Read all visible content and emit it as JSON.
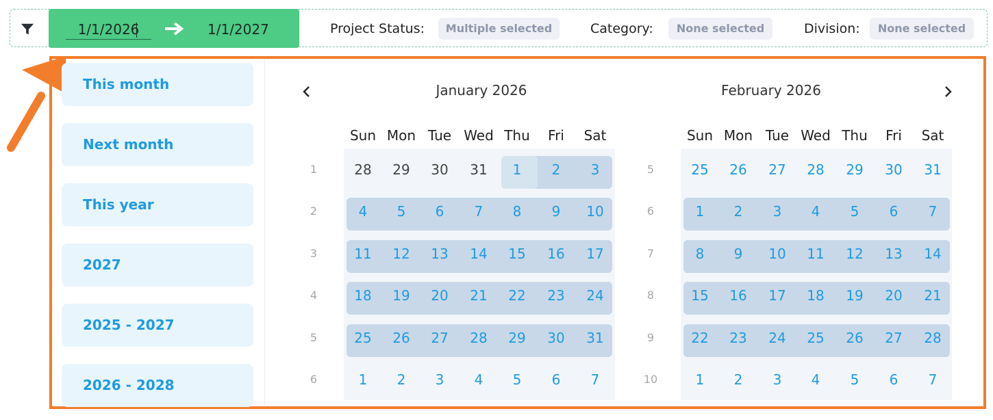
{
  "filters": {
    "date_range": {
      "start": "1/1/2026",
      "end": "1/1/2027"
    },
    "project_status": {
      "label": "Project Status:",
      "value": "Multiple selected"
    },
    "category": {
      "label": "Category:",
      "value": "None selected"
    },
    "division": {
      "label": "Division:",
      "value": "None selected"
    }
  },
  "presets": [
    "This month",
    "Next month",
    "This year",
    "2027",
    "2025 - 2027",
    "2026 - 2028"
  ],
  "calendars": [
    {
      "title": "January 2026",
      "weekdays": [
        "Sun",
        "Mon",
        "Tue",
        "Wed",
        "Thu",
        "Fri",
        "Sat"
      ],
      "week_numbers": [
        "1",
        "2",
        "3",
        "4",
        "5",
        "6"
      ],
      "weeks": [
        [
          "28",
          "29",
          "30",
          "31",
          "1",
          "2",
          "3"
        ],
        [
          "4",
          "5",
          "6",
          "7",
          "8",
          "9",
          "10"
        ],
        [
          "11",
          "12",
          "13",
          "14",
          "15",
          "16",
          "17"
        ],
        [
          "18",
          "19",
          "20",
          "21",
          "22",
          "23",
          "24"
        ],
        [
          "25",
          "26",
          "27",
          "28",
          "29",
          "30",
          "31"
        ],
        [
          "1",
          "2",
          "3",
          "4",
          "5",
          "6",
          "7"
        ]
      ]
    },
    {
      "title": "February 2026",
      "weekdays": [
        "Sun",
        "Mon",
        "Tue",
        "Wed",
        "Thu",
        "Fri",
        "Sat"
      ],
      "week_numbers": [
        "5",
        "6",
        "7",
        "8",
        "9",
        "10"
      ],
      "weeks": [
        [
          "25",
          "26",
          "27",
          "28",
          "29",
          "30",
          "31"
        ],
        [
          "1",
          "2",
          "3",
          "4",
          "5",
          "6",
          "7"
        ],
        [
          "8",
          "9",
          "10",
          "11",
          "12",
          "13",
          "14"
        ],
        [
          "15",
          "16",
          "17",
          "18",
          "19",
          "20",
          "21"
        ],
        [
          "22",
          "23",
          "24",
          "25",
          "26",
          "27",
          "28"
        ],
        [
          "1",
          "2",
          "3",
          "4",
          "5",
          "6",
          "7"
        ]
      ]
    }
  ],
  "colors": {
    "range_bg": "#4ecb85",
    "highlight": "#f27d2b",
    "accent_text": "#1e9be0",
    "selected_row": "#c8d8e8"
  },
  "icons": {
    "filter": "funnel-icon",
    "range_arrow": "arrow-right-icon",
    "prev": "chevron-left-icon",
    "next": "chevron-right-icon"
  }
}
